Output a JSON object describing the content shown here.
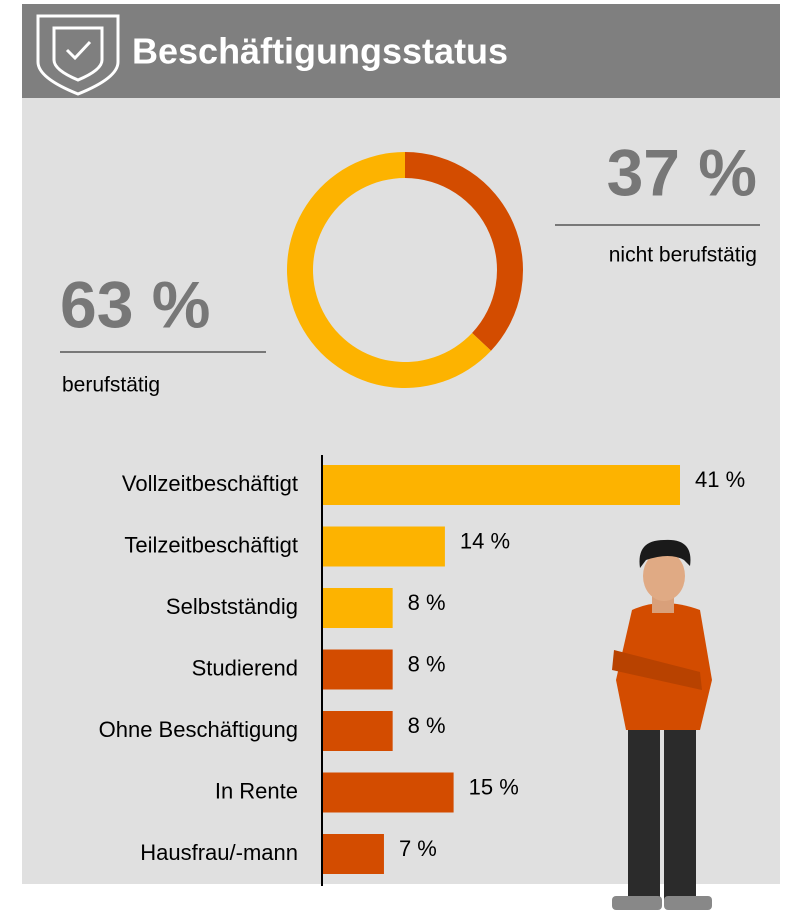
{
  "header": {
    "title": "Beschäftigungsstatus"
  },
  "chart_data": [
    {
      "type": "donut",
      "categories": [
        "berufstätig",
        "nicht berufstätig"
      ],
      "values": [
        63,
        37
      ],
      "value_labels": [
        "63 %",
        "37 %"
      ],
      "colors": [
        "#fdb300",
        "#d34c00"
      ]
    },
    {
      "type": "hbar",
      "categories": [
        "Vollzeitbeschäftigt",
        "Teilzeitbeschäftigt",
        "Selbstständig",
        "Studierend",
        "Ohne Beschäftigung",
        "In Rente",
        "Hausfrau/-mann"
      ],
      "values": [
        41,
        14,
        8,
        8,
        8,
        15,
        7
      ],
      "value_labels": [
        "41 %",
        "14 %",
        "8 %",
        "8 %",
        "8 %",
        "15 %",
        "7 %"
      ],
      "colors": [
        "#fdb300",
        "#fdb300",
        "#fdb300",
        "#d34c00",
        "#d34c00",
        "#d34c00",
        "#d34c00"
      ]
    }
  ]
}
